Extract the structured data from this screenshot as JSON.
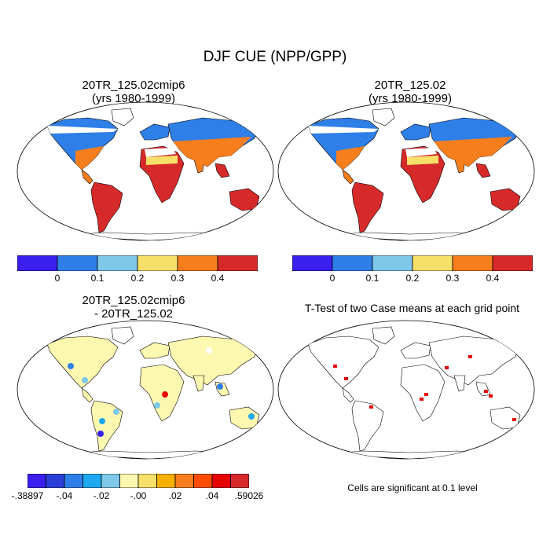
{
  "figure_title": "DJF CUE (NPP/GPP)",
  "chart_data": [
    {
      "type": "heatmap",
      "title_line1": "20TR_125.02cmip6",
      "title_line2": "(yrs 1980-1999)",
      "colorbar": {
        "colors": [
          "#3a1fef",
          "#2f7fe8",
          "#7ec8ea",
          "#f7e06a",
          "#f77e1c",
          "#d62a2a"
        ],
        "tick_labels": [
          "0",
          "0.1",
          "0.2",
          "0.3",
          "0.4"
        ]
      }
    },
    {
      "type": "heatmap",
      "title_line1": "20TR_125.02",
      "title_line2": "(yrs 1980-1999)",
      "colorbar": {
        "colors": [
          "#3a1fef",
          "#2f7fe8",
          "#7ec8ea",
          "#f7e06a",
          "#f77e1c",
          "#d62a2a"
        ],
        "tick_labels": [
          "0",
          "0.1",
          "0.2",
          "0.3",
          "0.4"
        ]
      }
    },
    {
      "type": "heatmap",
      "title_line1": "20TR_125.02cmip6",
      "title_line2": "- 20TR_125.02",
      "colorbar": {
        "colors": [
          "#3a1fef",
          "#2a3fd8",
          "#2f7fe8",
          "#1ea8f0",
          "#7ec8ea",
          "#fdf8b0",
          "#f7e06a",
          "#f5b000",
          "#f77e1c",
          "#ff4d00",
          "#e60000",
          "#d62a2a"
        ],
        "tick_labels": [
          "-.38897",
          "-.04",
          "-.02",
          "-.00",
          ".02",
          ".04",
          ".59026"
        ]
      }
    },
    {
      "type": "heatmap",
      "title": "T-Test of two Case means at each grid point",
      "note": "Cells are significant at 0.1 level"
    }
  ]
}
